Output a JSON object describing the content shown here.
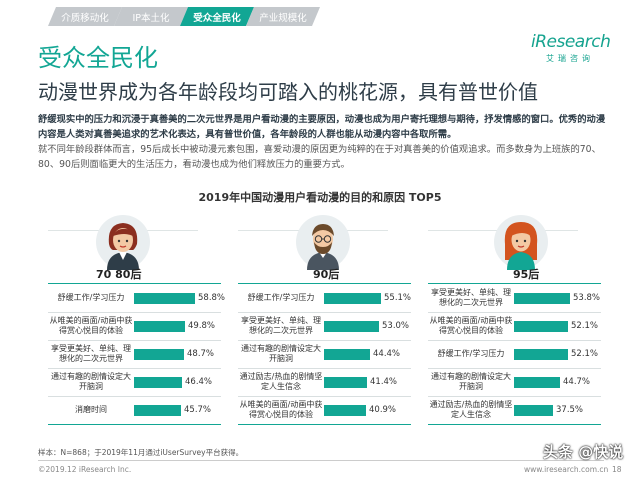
{
  "nav": {
    "tabs": [
      {
        "label": "介质移动化",
        "active": false
      },
      {
        "label": "IP本土化",
        "active": false
      },
      {
        "label": "受众全民化",
        "active": true
      },
      {
        "label": "产业规模化",
        "active": false
      }
    ]
  },
  "logo": {
    "main": "iResearch",
    "sub": "艾瑞咨询"
  },
  "section_title": "受众全民化",
  "headline": "动漫世界成为各年龄段均可踏入的桃花源，具有普世价值",
  "paragraph": {
    "bold": "舒缓现实中的压力和沉浸于真善美的二次元世界是用户看动漫的主要原因，动漫也成为用户寄托理想与期待，抒发情感的窗口。优秀的动漫内容是人类对真善美追求的艺术化表达，具有普世价值，各年龄段的人群也能从动漫内容中各取所需。",
    "normal": "就不同年龄段群体而言，95后成长中被动漫元素包围，喜爱动漫的原因更为纯粹的在于对真善美的价值观追求。而多数身为上班族的70、80、90后则面临更大的生活压力，看动漫也成为他们释放压力的重要方式。"
  },
  "footer": {
    "source": "样本：N=868；于2019年11月通过iUserSurvey平台获得。",
    "copyright": "©2019.12 iResearch Inc.",
    "site": "www.iresearch.com.cn",
    "page": "18",
    "watermark": "头条 @快说"
  },
  "colors": {
    "accent": "#12a694",
    "nav_inactive": "#c4c8cc",
    "text_dark": "#2e3d48"
  },
  "chart_data": [
    {
      "type": "bar",
      "title": "2019年中国动漫用户看动漫的目的和原因 TOP5",
      "group": "70 80后",
      "categories": [
        "舒缓工作/学习压力",
        "从唯美的画面/动画中获得赏心悦目的体验",
        "享受更美好、单纯、理想化的二次元世界",
        "通过有趣的剧情设定大开脑洞",
        "消磨时间"
      ],
      "values": [
        58.8,
        49.8,
        48.7,
        46.4,
        45.7
      ],
      "value_labels": [
        "58.8%",
        "49.8%",
        "48.7%",
        "46.4%",
        "45.7%"
      ],
      "xlim": [
        0,
        60
      ]
    },
    {
      "type": "bar",
      "group": "90后",
      "categories": [
        "舒缓工作/学习压力",
        "享受更美好、单纯、理想化的二次元世界",
        "通过有趣的剧情设定大开脑洞",
        "通过励志/热血的剧情坚定人生信念",
        "从唯美的画面/动画中获得赏心悦目的体验"
      ],
      "values": [
        55.1,
        53.0,
        44.4,
        41.4,
        40.9
      ],
      "value_labels": [
        "55.1%",
        "53.0%",
        "44.4%",
        "41.4%",
        "40.9%"
      ],
      "xlim": [
        0,
        60
      ]
    },
    {
      "type": "bar",
      "group": "95后",
      "categories": [
        "享受更美好、单纯、理想化的二次元世界",
        "从唯美的画面/动画中获得赏心悦目的体验",
        "舒缓工作/学习压力",
        "通过有趣的剧情设定大开脑洞",
        "通过励志/热血的剧情坚定人生信念"
      ],
      "values": [
        53.8,
        52.1,
        52.1,
        44.7,
        37.5
      ],
      "value_labels": [
        "53.8%",
        "52.1%",
        "52.1%",
        "44.7%",
        "37.5%"
      ],
      "xlim": [
        0,
        60
      ]
    }
  ]
}
